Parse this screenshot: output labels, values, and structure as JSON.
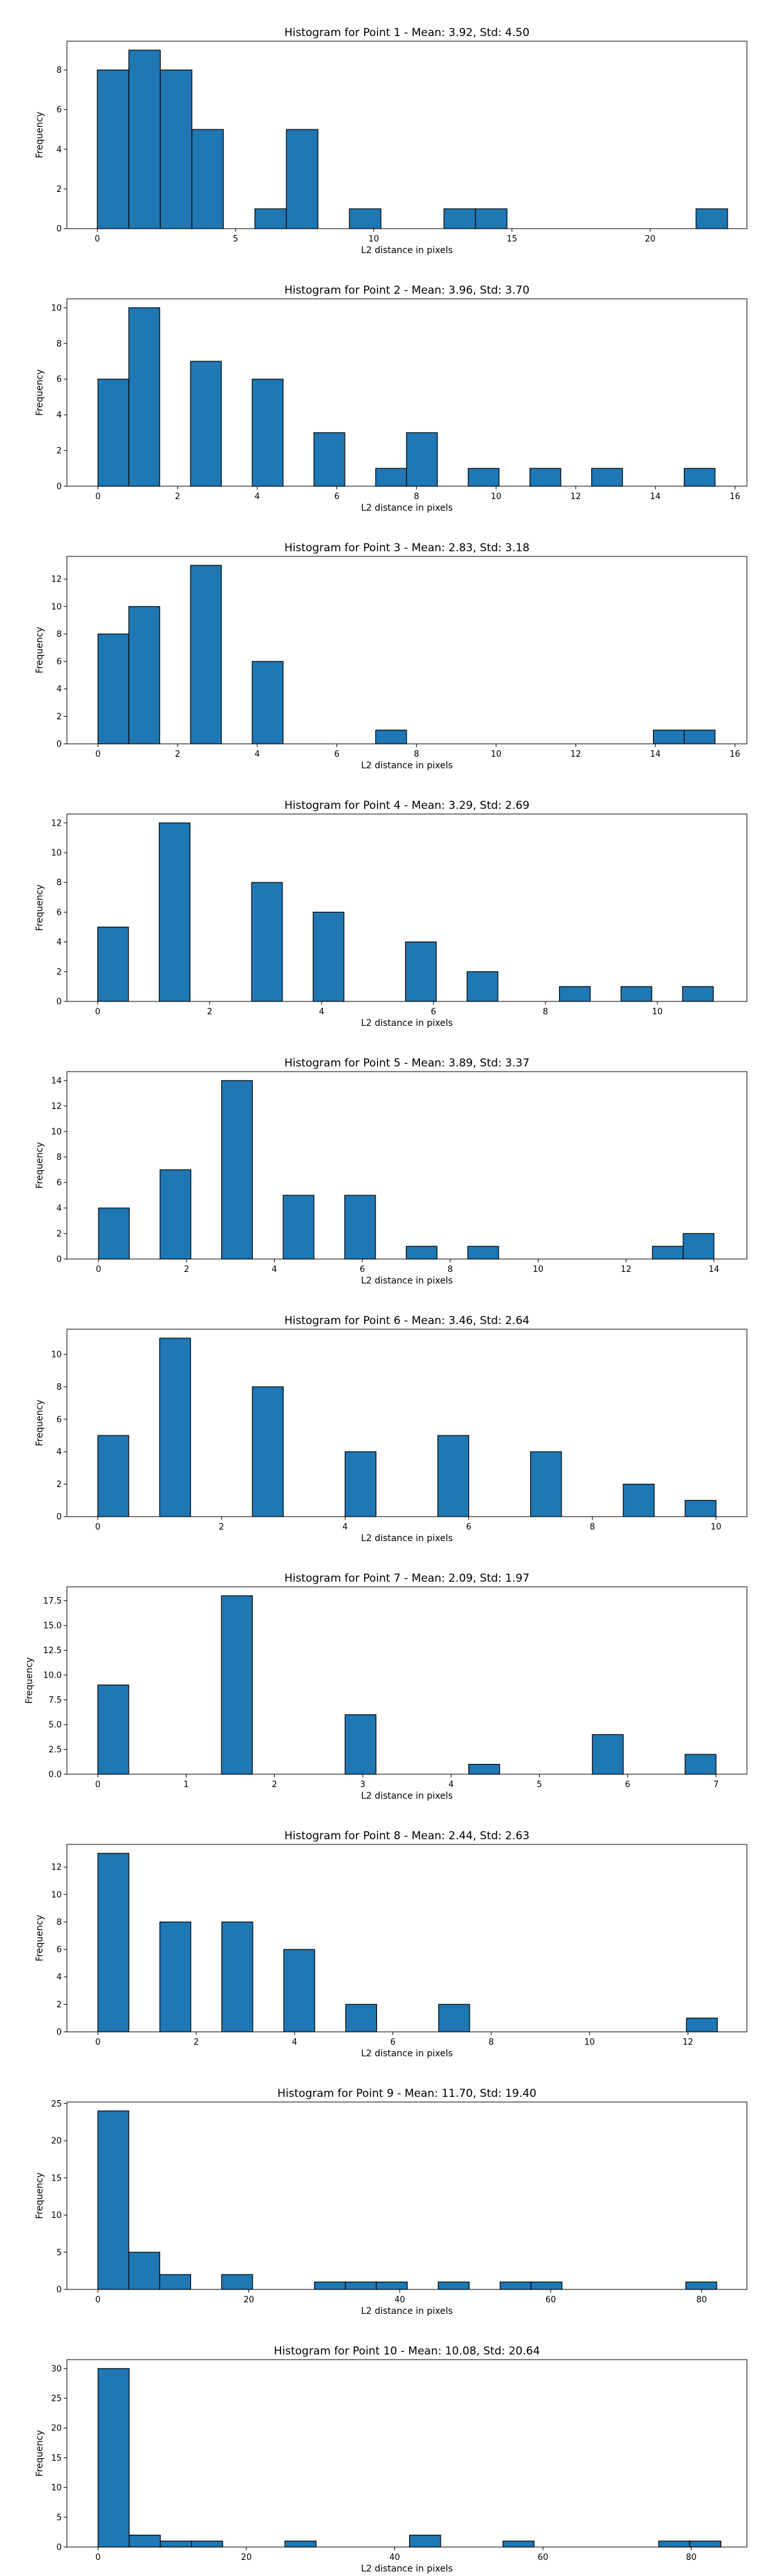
{
  "bar_color": "#1f77b4",
  "edge_color": "#000000",
  "chart_data": [
    {
      "type": "bar",
      "title": "Histogram for Point 1 - Mean: 3.92, Std: 4.50",
      "xlabel": "L2 distance in pixels",
      "ylabel": "Frequency",
      "xlim": [
        -1.1,
        23.5
      ],
      "ylim": [
        0,
        9.45
      ],
      "xticks": [
        0,
        5,
        10,
        15,
        20
      ],
      "xtick_labels": [
        "0",
        "5",
        "10",
        "15",
        "20"
      ],
      "yticks": [
        0,
        2,
        4,
        6,
        8
      ],
      "ytick_labels": [
        "0",
        "2",
        "4",
        "6",
        "8"
      ],
      "bin_width": 1.14,
      "bins": [
        {
          "x": 0,
          "v": 8
        },
        {
          "x": 1.14,
          "v": 9
        },
        {
          "x": 2.28,
          "v": 8
        },
        {
          "x": 3.42,
          "v": 5
        },
        {
          "x": 5.7,
          "v": 1
        },
        {
          "x": 6.84,
          "v": 5
        },
        {
          "x": 9.12,
          "v": 1
        },
        {
          "x": 12.54,
          "v": 1
        },
        {
          "x": 13.68,
          "v": 1
        },
        {
          "x": 21.66,
          "v": 1
        }
      ]
    },
    {
      "type": "bar",
      "title": "Histogram for Point 2 - Mean: 3.96, Std: 3.70",
      "xlabel": "L2 distance in pixels",
      "ylabel": "Frequency",
      "xlim": [
        -0.78,
        16.3
      ],
      "ylim": [
        0,
        10.5
      ],
      "xticks": [
        0,
        2,
        4,
        6,
        8,
        10,
        12,
        14,
        16
      ],
      "xtick_labels": [
        "0",
        "2",
        "4",
        "6",
        "8",
        "10",
        "12",
        "14",
        "16"
      ],
      "yticks": [
        0,
        2,
        4,
        6,
        8,
        10
      ],
      "ytick_labels": [
        "0",
        "2",
        "4",
        "6",
        "8",
        "10"
      ],
      "bin_width": 0.775,
      "bins": [
        {
          "x": 0,
          "v": 6
        },
        {
          "x": 0.775,
          "v": 10
        },
        {
          "x": 2.325,
          "v": 7
        },
        {
          "x": 3.875,
          "v": 6
        },
        {
          "x": 5.425,
          "v": 3
        },
        {
          "x": 6.975,
          "v": 1
        },
        {
          "x": 7.75,
          "v": 3
        },
        {
          "x": 9.3,
          "v": 1
        },
        {
          "x": 10.85,
          "v": 1
        },
        {
          "x": 12.4,
          "v": 1
        },
        {
          "x": 14.725,
          "v": 1
        }
      ]
    },
    {
      "type": "bar",
      "title": "Histogram for Point 3 - Mean: 2.83, Std: 3.18",
      "xlabel": "L2 distance in pixels",
      "ylabel": "Frequency",
      "xlim": [
        -0.78,
        16.3
      ],
      "ylim": [
        0,
        13.65
      ],
      "xticks": [
        0,
        2,
        4,
        6,
        8,
        10,
        12,
        14,
        16
      ],
      "xtick_labels": [
        "0",
        "2",
        "4",
        "6",
        "8",
        "10",
        "12",
        "14",
        "16"
      ],
      "yticks": [
        0,
        2,
        4,
        6,
        8,
        10,
        12
      ],
      "ytick_labels": [
        "0",
        "2",
        "4",
        "6",
        "8",
        "10",
        "12"
      ],
      "bin_width": 0.775,
      "bins": [
        {
          "x": 0,
          "v": 8
        },
        {
          "x": 0.775,
          "v": 10
        },
        {
          "x": 2.325,
          "v": 13
        },
        {
          "x": 3.875,
          "v": 6
        },
        {
          "x": 6.975,
          "v": 1
        },
        {
          "x": 13.95,
          "v": 1
        },
        {
          "x": 14.725,
          "v": 1
        }
      ]
    },
    {
      "type": "bar",
      "title": "Histogram for Point 4 - Mean: 3.29, Std: 2.69",
      "xlabel": "L2 distance in pixels",
      "ylabel": "Frequency",
      "xlim": [
        -0.55,
        11.6
      ],
      "ylim": [
        0,
        12.6
      ],
      "xticks": [
        0,
        2,
        4,
        6,
        8,
        10
      ],
      "xtick_labels": [
        "0",
        "2",
        "4",
        "6",
        "8",
        "10"
      ],
      "yticks": [
        0,
        2,
        4,
        6,
        8,
        10,
        12
      ],
      "ytick_labels": [
        "0",
        "2",
        "4",
        "6",
        "8",
        "10",
        "12"
      ],
      "bin_width": 0.55,
      "bins": [
        {
          "x": 0,
          "v": 5
        },
        {
          "x": 1.1,
          "v": 12
        },
        {
          "x": 2.75,
          "v": 8
        },
        {
          "x": 3.85,
          "v": 6
        },
        {
          "x": 5.5,
          "v": 4
        },
        {
          "x": 6.6,
          "v": 2
        },
        {
          "x": 8.25,
          "v": 1
        },
        {
          "x": 9.35,
          "v": 1
        },
        {
          "x": 10.45,
          "v": 1
        }
      ]
    },
    {
      "type": "bar",
      "title": "Histogram for Point 5 - Mean: 3.89, Std: 3.37",
      "xlabel": "L2 distance in pixels",
      "ylabel": "Frequency",
      "xlim": [
        -0.72,
        14.75
      ],
      "ylim": [
        0,
        14.7
      ],
      "xticks": [
        0,
        2,
        4,
        6,
        8,
        10,
        12,
        14
      ],
      "xtick_labels": [
        "0",
        "2",
        "4",
        "6",
        "8",
        "10",
        "12",
        "14"
      ],
      "yticks": [
        0,
        2,
        4,
        6,
        8,
        10,
        12,
        14
      ],
      "ytick_labels": [
        "0",
        "2",
        "4",
        "6",
        "8",
        "10",
        "12",
        "14"
      ],
      "bin_width": 0.7,
      "bins": [
        {
          "x": 0,
          "v": 4
        },
        {
          "x": 1.4,
          "v": 7
        },
        {
          "x": 2.8,
          "v": 14
        },
        {
          "x": 4.2,
          "v": 5
        },
        {
          "x": 5.6,
          "v": 5
        },
        {
          "x": 7.0,
          "v": 1
        },
        {
          "x": 8.4,
          "v": 1
        },
        {
          "x": 12.6,
          "v": 1
        },
        {
          "x": 13.3,
          "v": 2
        }
      ]
    },
    {
      "type": "bar",
      "title": "Histogram for Point 6 - Mean: 3.46, Std: 2.64",
      "xlabel": "L2 distance in pixels",
      "ylabel": "Frequency",
      "xlim": [
        -0.5,
        10.5
      ],
      "ylim": [
        0,
        11.55
      ],
      "xticks": [
        0,
        2,
        4,
        6,
        8,
        10
      ],
      "xtick_labels": [
        "0",
        "2",
        "4",
        "6",
        "8",
        "10"
      ],
      "yticks": [
        0,
        2,
        4,
        6,
        8,
        10
      ],
      "ytick_labels": [
        "0",
        "2",
        "4",
        "6",
        "8",
        "10"
      ],
      "bin_width": 0.5,
      "bins": [
        {
          "x": 0,
          "v": 5
        },
        {
          "x": 1.0,
          "v": 11
        },
        {
          "x": 2.5,
          "v": 8
        },
        {
          "x": 4.0,
          "v": 4
        },
        {
          "x": 5.5,
          "v": 5
        },
        {
          "x": 7.0,
          "v": 4
        },
        {
          "x": 8.5,
          "v": 2
        },
        {
          "x": 9.5,
          "v": 1
        }
      ]
    },
    {
      "type": "bar",
      "title": "Histogram for Point 7 - Mean: 2.09, Std: 1.97",
      "xlabel": "L2 distance in pixels",
      "ylabel": "Frequency",
      "xlim": [
        -0.35,
        7.35
      ],
      "ylim": [
        0,
        18.9
      ],
      "xticks": [
        0,
        1,
        2,
        3,
        4,
        5,
        6,
        7
      ],
      "xtick_labels": [
        "0",
        "1",
        "2",
        "3",
        "4",
        "5",
        "6",
        "7"
      ],
      "yticks": [
        0,
        2.5,
        5,
        7.5,
        10,
        12.5,
        15,
        17.5
      ],
      "ytick_labels": [
        "0.0",
        "2.5",
        "5.0",
        "7.5",
        "10.0",
        "12.5",
        "15.0",
        "17.5"
      ],
      "bin_width": 0.35,
      "bins": [
        {
          "x": 0,
          "v": 9
        },
        {
          "x": 1.4,
          "v": 18
        },
        {
          "x": 2.8,
          "v": 6
        },
        {
          "x": 4.2,
          "v": 1
        },
        {
          "x": 5.6,
          "v": 4
        },
        {
          "x": 6.65,
          "v": 2
        }
      ]
    },
    {
      "type": "bar",
      "title": "Histogram for Point 8 - Mean: 2.44, Std: 2.63",
      "xlabel": "L2 distance in pixels",
      "ylabel": "Frequency",
      "xlim": [
        -0.63,
        13.2
      ],
      "ylim": [
        0,
        13.65
      ],
      "xticks": [
        0,
        2,
        4,
        6,
        8,
        10,
        12
      ],
      "xtick_labels": [
        "0",
        "2",
        "4",
        "6",
        "8",
        "10",
        "12"
      ],
      "yticks": [
        0,
        2,
        4,
        6,
        8,
        10,
        12
      ],
      "ytick_labels": [
        "0",
        "2",
        "4",
        "6",
        "8",
        "10",
        "12"
      ],
      "bin_width": 0.63,
      "bins": [
        {
          "x": 0,
          "v": 13
        },
        {
          "x": 1.26,
          "v": 8
        },
        {
          "x": 2.52,
          "v": 8
        },
        {
          "x": 3.78,
          "v": 6
        },
        {
          "x": 5.04,
          "v": 2
        },
        {
          "x": 6.93,
          "v": 2
        },
        {
          "x": 11.97,
          "v": 1
        }
      ]
    },
    {
      "type": "bar",
      "title": "Histogram for Point 9 - Mean: 11.70, Std: 19.40",
      "xlabel": "L2 distance in pixels",
      "ylabel": "Frequency",
      "xlim": [
        -4.1,
        86.0
      ],
      "ylim": [
        0,
        25.2
      ],
      "xticks": [
        0,
        20,
        40,
        60,
        80
      ],
      "xtick_labels": [
        "0",
        "20",
        "40",
        "60",
        "80"
      ],
      "yticks": [
        0,
        5,
        10,
        15,
        20,
        25
      ],
      "ytick_labels": [
        "0",
        "5",
        "10",
        "15",
        "20",
        "25"
      ],
      "bin_width": 4.1,
      "bins": [
        {
          "x": 0,
          "v": 24
        },
        {
          "x": 4.1,
          "v": 5
        },
        {
          "x": 8.2,
          "v": 2
        },
        {
          "x": 16.4,
          "v": 2
        },
        {
          "x": 28.7,
          "v": 1
        },
        {
          "x": 32.8,
          "v": 1
        },
        {
          "x": 36.9,
          "v": 1
        },
        {
          "x": 45.1,
          "v": 1
        },
        {
          "x": 53.3,
          "v": 1
        },
        {
          "x": 57.4,
          "v": 1
        },
        {
          "x": 77.9,
          "v": 1
        }
      ]
    },
    {
      "type": "bar",
      "title": "Histogram for Point 10 - Mean: 10.08, Std: 20.64",
      "xlabel": "L2 distance in pixels",
      "ylabel": "Frequency",
      "xlim": [
        -4.2,
        87.5
      ],
      "ylim": [
        0,
        31.5
      ],
      "xticks": [
        0,
        20,
        40,
        60,
        80
      ],
      "xtick_labels": [
        "0",
        "20",
        "40",
        "60",
        "80"
      ],
      "yticks": [
        0,
        5,
        10,
        15,
        20,
        25,
        30
      ],
      "ytick_labels": [
        "0",
        "5",
        "10",
        "15",
        "20",
        "25",
        "30"
      ],
      "bin_width": 4.2,
      "bins": [
        {
          "x": 0,
          "v": 30
        },
        {
          "x": 4.2,
          "v": 2
        },
        {
          "x": 8.4,
          "v": 1
        },
        {
          "x": 12.6,
          "v": 1
        },
        {
          "x": 25.2,
          "v": 1
        },
        {
          "x": 42.0,
          "v": 2
        },
        {
          "x": 54.6,
          "v": 1
        },
        {
          "x": 75.6,
          "v": 1
        },
        {
          "x": 79.8,
          "v": 1
        }
      ]
    }
  ]
}
